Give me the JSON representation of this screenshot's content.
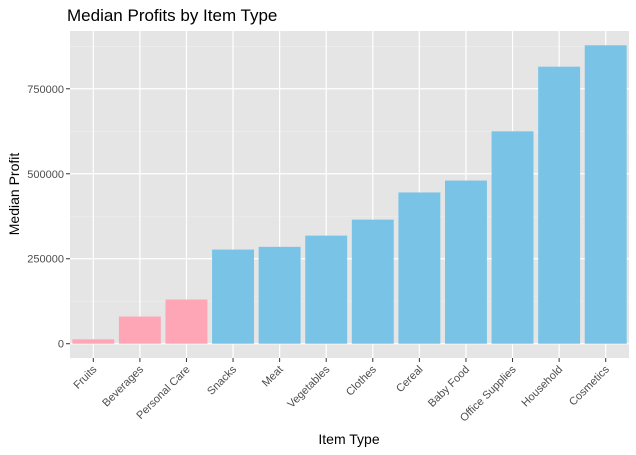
{
  "chart_data": {
    "type": "bar",
    "title": "Median Profits by Item Type",
    "xlabel": "Item Type",
    "ylabel": "Median Profit",
    "categories": [
      "Fruits",
      "Beverages",
      "Personal Care",
      "Snacks",
      "Meat",
      "Vegetables",
      "Clothes",
      "Cereal",
      "Baby Food",
      "Office Supplies",
      "Household",
      "Cosmetics"
    ],
    "values": [
      13000,
      80000,
      130000,
      277000,
      285000,
      318000,
      365000,
      445000,
      480000,
      625000,
      815000,
      878000
    ],
    "highlight": [
      "Fruits",
      "Beverages",
      "Personal Care"
    ],
    "yticks": [
      0,
      250000,
      500000,
      750000
    ],
    "ytick_labels": [
      "0",
      "250000",
      "500000",
      "750000"
    ],
    "ylim": [
      -42000,
      920000
    ],
    "grid": true,
    "legend": "none",
    "colors": {
      "highlight": "#ffa6b6",
      "default": "#79c4e6",
      "panel": "#e5e5e5",
      "grid_major": "#ffffff",
      "grid_minor": "#f0f0f0",
      "tick_text": "#4d4d4d"
    }
  }
}
